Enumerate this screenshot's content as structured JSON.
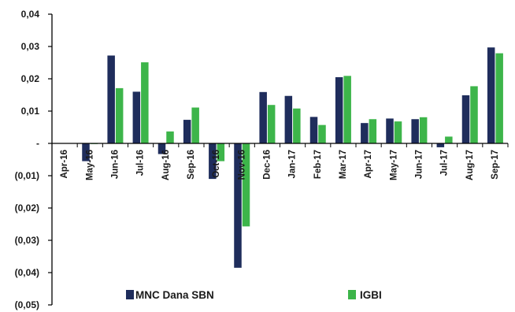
{
  "chart_data": {
    "type": "bar",
    "categories": [
      "Apr-16",
      "May-16",
      "Jun-16",
      "Jul-16",
      "Aug-16",
      "Sep-16",
      "Oct-16",
      "Nov-16",
      "Dec-16",
      "Jan-17",
      "Feb-17",
      "Mar-17",
      "Apr-17",
      "May-17",
      "Jun-17",
      "Jul-17",
      "Aug-17",
      "Sep-17"
    ],
    "series": [
      {
        "name": "MNC Dana SBN",
        "color": "#1f2d5c",
        "values": [
          0,
          -0.0055,
          0.0272,
          0.016,
          -0.0033,
          0.0073,
          -0.011,
          -0.0385,
          0.0159,
          0.0147,
          0.0082,
          0.0205,
          0.0063,
          0.0077,
          0.0075,
          -0.0012,
          0.0149,
          0.0297
        ]
      },
      {
        "name": "IGBI",
        "color": "#3db54a",
        "values": [
          0,
          -0.0002,
          0.0171,
          0.0251,
          0.0037,
          0.0111,
          -0.0055,
          -0.0257,
          0.0119,
          0.0108,
          0.0057,
          0.0209,
          0.0075,
          0.0068,
          0.0081,
          0.0021,
          0.0177,
          0.0279
        ]
      }
    ],
    "yticks": [
      0.04,
      0.03,
      0.02,
      0.01,
      0,
      -0.01,
      -0.02,
      -0.03,
      -0.04,
      -0.05
    ],
    "ytick_labels": [
      "0,04",
      "0,03",
      "0,02",
      "0,01",
      "-",
      "(0,01)",
      "(0,02)",
      "(0,03)",
      "(0,04)",
      "(0,05)"
    ],
    "ylim": [
      -0.05,
      0.04
    ],
    "legend_position": "bottom"
  }
}
